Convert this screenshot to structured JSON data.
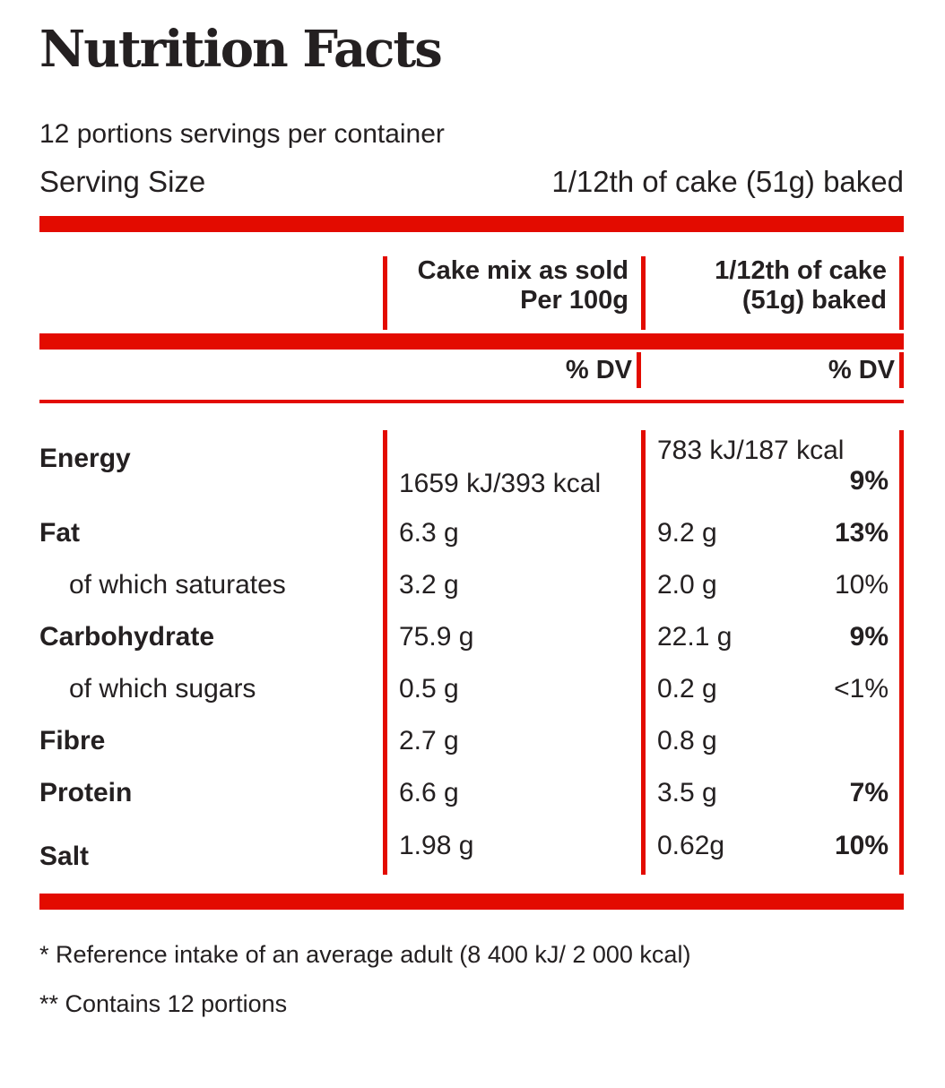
{
  "colors": {
    "accent_red": "#e30b00",
    "text_dark": "#242021"
  },
  "header": {
    "title": "Nutrition Facts",
    "servings_per_container": "12 portions servings per container",
    "serving_size_label": "Serving Size",
    "serving_size_value": "1/12th of cake (51g) baked"
  },
  "table": {
    "columns": [
      {
        "line1": "Cake mix as sold",
        "line2": "Per 100g",
        "dv_header": "% DV"
      },
      {
        "line1": "1/12th of cake",
        "line2": "(51g) baked",
        "dv_header": "% DV"
      }
    ],
    "rows": [
      {
        "label": "Energy",
        "col1": "1659 kJ/393 kcal",
        "col2": "783 kJ/187 kcal",
        "dv": "9%"
      },
      {
        "label": "Fat",
        "col1": "6.3 g",
        "col2": "9.2 g",
        "dv": "13%"
      },
      {
        "label": "of which saturates",
        "col1": "3.2 g",
        "col2": "2.0 g",
        "dv": "10%"
      },
      {
        "label": "Carbohydrate",
        "col1": "75.9 g",
        "col2": "22.1 g",
        "dv": "9%"
      },
      {
        "label": "of which sugars",
        "col1": "0.5 g",
        "col2": "0.2 g",
        "dv": "<1%"
      },
      {
        "label": "Fibre",
        "col1": "2.7 g",
        "col2": "0.8 g",
        "dv": ""
      },
      {
        "label": "Protein",
        "col1": "6.6 g",
        "col2": "3.5 g",
        "dv": "7%"
      },
      {
        "label": "Salt",
        "col1": "1.98 g",
        "col2": "0.62g",
        "dv": "10%"
      }
    ]
  },
  "footnotes": [
    "* Reference intake of an average adult (8 400 kJ/ 2 000 kcal)",
    "** Contains 12 portions"
  ]
}
